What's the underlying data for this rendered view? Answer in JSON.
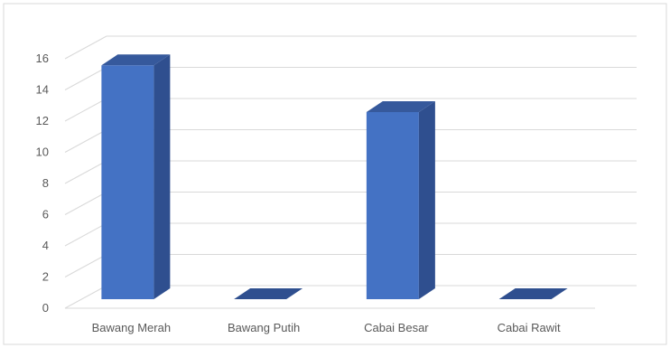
{
  "chart_data": {
    "type": "bar",
    "style": "3d-column",
    "title": "",
    "xlabel": "",
    "ylabel": "",
    "categories": [
      "Bawang Merah",
      "Bawang Putih",
      "Cabai Besar",
      "Cabai Rawit"
    ],
    "values": [
      15,
      0,
      12,
      0
    ],
    "ylim": [
      0,
      16
    ],
    "yticks": [
      "0",
      "2",
      "4",
      "6",
      "8",
      "10",
      "12",
      "14",
      "16"
    ],
    "grid": true,
    "legend": "none",
    "colors": {
      "front": "#4472c4",
      "side": "#2f4f8f",
      "top": "#36599c",
      "grid": "#d9d9d9",
      "border": "#d9d9d9",
      "text": "#595959"
    }
  }
}
